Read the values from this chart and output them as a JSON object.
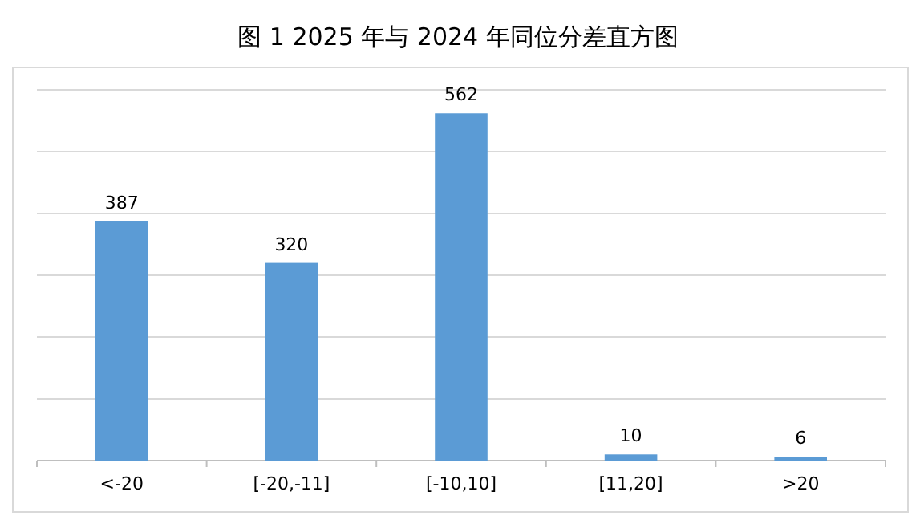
{
  "chart_data": {
    "type": "bar",
    "title": "图 1 2025 年与 2024 年同位分差直方图",
    "categories": [
      "<-20",
      "[-20,-11]",
      "[-10,10]",
      "[11,20]",
      ">20"
    ],
    "values": [
      387,
      320,
      562,
      10,
      6
    ],
    "color": "#5b9bd5",
    "ylim": [
      0,
      600
    ],
    "yticks": [
      {
        "value": 0,
        "label": null
      },
      {
        "value": 100,
        "label": null
      },
      {
        "value": 200,
        "label": null
      },
      {
        "value": 300,
        "label": null
      },
      {
        "value": 400,
        "label": null
      },
      {
        "value": 500,
        "label": null
      },
      {
        "value": 600,
        "label": null
      }
    ],
    "grid": "y",
    "data_labels": true,
    "tick_labels": "x"
  }
}
